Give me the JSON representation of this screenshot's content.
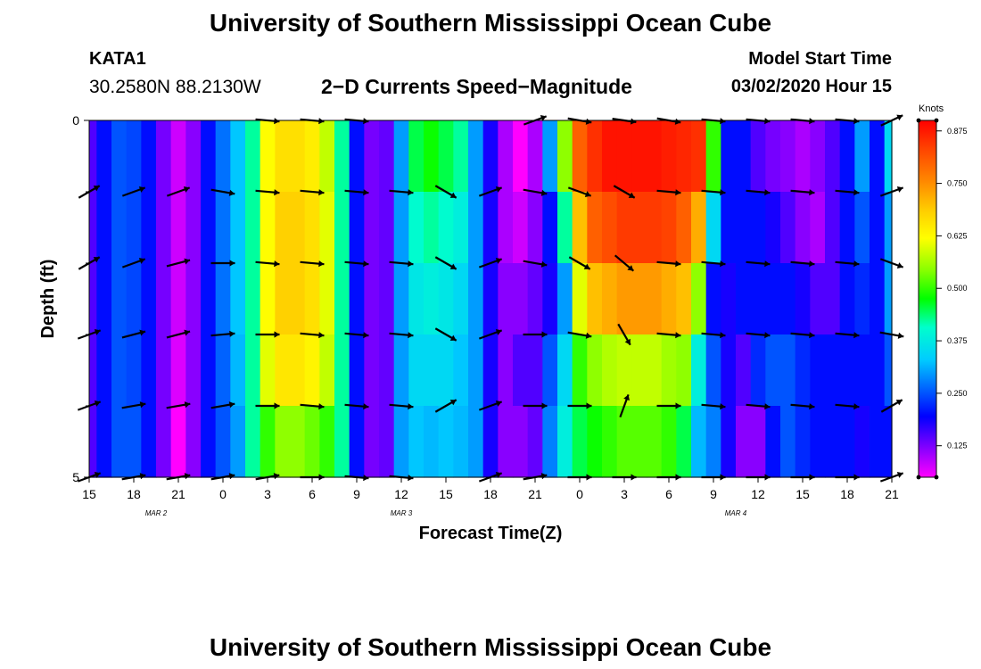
{
  "header": {
    "title": "University of Southern Mississippi Ocean Cube",
    "station": "KATA1",
    "coords": "30.2580N 88.2130W",
    "chart_title": "2−D Currents Speed−Magnitude",
    "model_start_label": "Model Start Time",
    "model_start_value": "03/02/2020 Hour 15"
  },
  "footer": {
    "title": "University of Southern Mississippi Ocean Cube"
  },
  "colors": {
    "scale": [
      "#ff00ff",
      "#8800ff",
      "#0000ff",
      "#0066ff",
      "#00ccff",
      "#00ffcc",
      "#00ff00",
      "#88ff00",
      "#ffff00",
      "#ffcc00",
      "#ff8800",
      "#ff4400",
      "#ff0000"
    ],
    "arrow": "#000000"
  },
  "chart_data": {
    "type": "heatmap",
    "title": "2−D Currents Speed−Magnitude",
    "xlabel": "Forecast Time(Z)",
    "ylabel": "Depth (ft)",
    "ylim": [
      0,
      5
    ],
    "yticks": [
      "0",
      "5"
    ],
    "x_hours": [
      0,
      3,
      6,
      9,
      12,
      15,
      18,
      21,
      24,
      27,
      30,
      33,
      36,
      39,
      42,
      45,
      48,
      51,
      54
    ],
    "x_tick_labels": [
      "15",
      "18",
      "21",
      "0",
      "3",
      "6",
      "9",
      "12",
      "15",
      "18",
      "21",
      "0",
      "3",
      "6",
      "9",
      "12",
      "15",
      "18",
      "21"
    ],
    "date_labels": [
      {
        "text": "MAR 2",
        "hour": 4.5
      },
      {
        "text": "MAR 3",
        "hour": 21
      },
      {
        "text": "MAR 4",
        "hour": 43.5
      }
    ],
    "colorbar": {
      "label": "Knots",
      "min": 0.05,
      "max": 0.9,
      "ticks": [
        "0.875",
        "0.750",
        "0.625",
        "0.500",
        "0.375",
        "0.250",
        "0.125"
      ],
      "tick_values": [
        0.875,
        0.75,
        0.625,
        0.5,
        0.375,
        0.25,
        0.125
      ]
    },
    "speed_columns": [
      {
        "t": 0,
        "v": [
          0.15,
          0.15,
          0.15,
          0.15,
          0.15
        ]
      },
      {
        "t": 1,
        "v": [
          0.2,
          0.2,
          0.2,
          0.2,
          0.2
        ]
      },
      {
        "t": 2,
        "v": [
          0.25,
          0.25,
          0.25,
          0.25,
          0.25
        ]
      },
      {
        "t": 3,
        "v": [
          0.24,
          0.24,
          0.24,
          0.24,
          0.25
        ]
      },
      {
        "t": 4,
        "v": [
          0.2,
          0.2,
          0.2,
          0.2,
          0.2
        ]
      },
      {
        "t": 5,
        "v": [
          0.13,
          0.13,
          0.13,
          0.13,
          0.13
        ]
      },
      {
        "t": 6,
        "v": [
          0.08,
          0.08,
          0.08,
          0.07,
          0.05
        ]
      },
      {
        "t": 7,
        "v": [
          0.12,
          0.12,
          0.12,
          0.12,
          0.12
        ]
      },
      {
        "t": 8,
        "v": [
          0.2,
          0.2,
          0.2,
          0.2,
          0.2
        ]
      },
      {
        "t": 9,
        "v": [
          0.27,
          0.27,
          0.27,
          0.26,
          0.25
        ]
      },
      {
        "t": 10,
        "v": [
          0.33,
          0.33,
          0.33,
          0.32,
          0.3
        ]
      },
      {
        "t": 11,
        "v": [
          0.42,
          0.42,
          0.42,
          0.42,
          0.42
        ]
      },
      {
        "t": 12,
        "v": [
          0.62,
          0.62,
          0.62,
          0.6,
          0.5
        ]
      },
      {
        "t": 13,
        "v": [
          0.66,
          0.68,
          0.68,
          0.65,
          0.55
        ]
      },
      {
        "t": 14,
        "v": [
          0.66,
          0.68,
          0.68,
          0.65,
          0.55
        ]
      },
      {
        "t": 15,
        "v": [
          0.64,
          0.66,
          0.66,
          0.63,
          0.53
        ]
      },
      {
        "t": 16,
        "v": [
          0.58,
          0.6,
          0.6,
          0.58,
          0.5
        ]
      },
      {
        "t": 17,
        "v": [
          0.42,
          0.42,
          0.42,
          0.42,
          0.42
        ]
      },
      {
        "t": 18,
        "v": [
          0.2,
          0.2,
          0.2,
          0.2,
          0.2
        ]
      },
      {
        "t": 19,
        "v": [
          0.13,
          0.13,
          0.13,
          0.13,
          0.13
        ]
      },
      {
        "t": 20,
        "v": [
          0.14,
          0.14,
          0.14,
          0.14,
          0.14
        ]
      },
      {
        "t": 21,
        "v": [
          0.3,
          0.3,
          0.3,
          0.3,
          0.3
        ]
      },
      {
        "t": 22,
        "v": [
          0.45,
          0.4,
          0.37,
          0.35,
          0.33
        ]
      },
      {
        "t": 23,
        "v": [
          0.48,
          0.42,
          0.38,
          0.35,
          0.32
        ]
      },
      {
        "t": 24,
        "v": [
          0.45,
          0.4,
          0.37,
          0.35,
          0.33
        ]
      },
      {
        "t": 25,
        "v": [
          0.42,
          0.38,
          0.35,
          0.33,
          0.32
        ]
      },
      {
        "t": 26,
        "v": [
          0.3,
          0.3,
          0.3,
          0.3,
          0.3
        ]
      },
      {
        "t": 27,
        "v": [
          0.18,
          0.18,
          0.18,
          0.18,
          0.18
        ]
      },
      {
        "t": 28,
        "v": [
          0.1,
          0.1,
          0.12,
          0.12,
          0.12
        ]
      },
      {
        "t": 29,
        "v": [
          0.05,
          0.08,
          0.12,
          0.15,
          0.12
        ]
      },
      {
        "t": 30,
        "v": [
          0.1,
          0.12,
          0.14,
          0.15,
          0.14
        ]
      },
      {
        "t": 31,
        "v": [
          0.3,
          0.2,
          0.18,
          0.25,
          0.28
        ]
      },
      {
        "t": 32,
        "v": [
          0.55,
          0.42,
          0.3,
          0.35,
          0.38
        ]
      },
      {
        "t": 33,
        "v": [
          0.8,
          0.7,
          0.6,
          0.5,
          0.45
        ]
      },
      {
        "t": 34,
        "v": [
          0.85,
          0.8,
          0.7,
          0.55,
          0.48
        ]
      },
      {
        "t": 35,
        "v": [
          0.88,
          0.82,
          0.72,
          0.57,
          0.5
        ]
      },
      {
        "t": 36,
        "v": [
          0.88,
          0.84,
          0.74,
          0.58,
          0.52
        ]
      },
      {
        "t": 37,
        "v": [
          0.88,
          0.84,
          0.74,
          0.58,
          0.52
        ]
      },
      {
        "t": 38,
        "v": [
          0.88,
          0.84,
          0.74,
          0.58,
          0.52
        ]
      },
      {
        "t": 39,
        "v": [
          0.87,
          0.83,
          0.72,
          0.56,
          0.5
        ]
      },
      {
        "t": 40,
        "v": [
          0.86,
          0.8,
          0.7,
          0.55,
          0.45
        ]
      },
      {
        "t": 41,
        "v": [
          0.85,
          0.72,
          0.55,
          0.38,
          0.32
        ]
      },
      {
        "t": 42,
        "v": [
          0.5,
          0.35,
          0.2,
          0.25,
          0.28
        ]
      },
      {
        "t": 43,
        "v": [
          0.2,
          0.2,
          0.18,
          0.18,
          0.18
        ]
      },
      {
        "t": 44,
        "v": [
          0.2,
          0.2,
          0.2,
          0.15,
          0.12
        ]
      },
      {
        "t": 45,
        "v": [
          0.15,
          0.2,
          0.2,
          0.22,
          0.12
        ]
      },
      {
        "t": 46,
        "v": [
          0.13,
          0.18,
          0.2,
          0.25,
          0.2
        ]
      },
      {
        "t": 47,
        "v": [
          0.12,
          0.15,
          0.2,
          0.25,
          0.25
        ]
      },
      {
        "t": 48,
        "v": [
          0.1,
          0.12,
          0.18,
          0.22,
          0.22
        ]
      },
      {
        "t": 49,
        "v": [
          0.12,
          0.1,
          0.15,
          0.2,
          0.2
        ]
      },
      {
        "t": 50,
        "v": [
          0.15,
          0.15,
          0.15,
          0.2,
          0.2
        ]
      },
      {
        "t": 51,
        "v": [
          0.2,
          0.2,
          0.2,
          0.2,
          0.2
        ]
      },
      {
        "t": 52,
        "v": [
          0.3,
          0.25,
          0.22,
          0.2,
          0.18
        ]
      },
      {
        "t": 53,
        "v": [
          0.2,
          0.2,
          0.2,
          0.2,
          0.2
        ]
      },
      {
        "t": 54,
        "v": [
          0.35,
          0.3,
          0.3,
          0.25,
          0.2
        ]
      }
    ],
    "vector_depths": [
      0,
      1,
      2,
      3,
      4,
      5
    ],
    "vector_times": [
      0,
      3,
      6,
      9,
      12,
      15,
      18,
      21,
      24,
      27,
      30,
      33,
      36,
      39,
      42,
      45,
      48,
      51,
      54
    ],
    "vectors": [
      [
        null,
        null,
        null,
        null,
        95,
        95,
        95,
        null,
        null,
        null,
        70,
        100,
        98,
        100,
        95,
        95,
        95,
        95,
        65
      ],
      [
        60,
        70,
        70,
        100,
        95,
        95,
        95,
        95,
        120,
        70,
        100,
        110,
        120,
        95,
        95,
        95,
        95,
        95,
        70
      ],
      [
        60,
        70,
        75,
        90,
        95,
        95,
        95,
        95,
        120,
        70,
        100,
        120,
        130,
        95,
        95,
        95,
        95,
        95,
        110
      ],
      [
        70,
        75,
        75,
        85,
        90,
        95,
        95,
        95,
        120,
        70,
        90,
        100,
        150,
        95,
        95,
        95,
        95,
        95,
        100
      ],
      [
        70,
        80,
        80,
        80,
        90,
        95,
        95,
        95,
        60,
        70,
        90,
        90,
        20,
        90,
        95,
        95,
        95,
        95,
        60
      ],
      [
        70,
        80,
        80,
        80,
        80,
        90,
        95,
        95,
        null,
        70,
        80,
        90,
        90,
        90,
        90,
        90,
        90,
        90,
        70
      ]
    ]
  }
}
